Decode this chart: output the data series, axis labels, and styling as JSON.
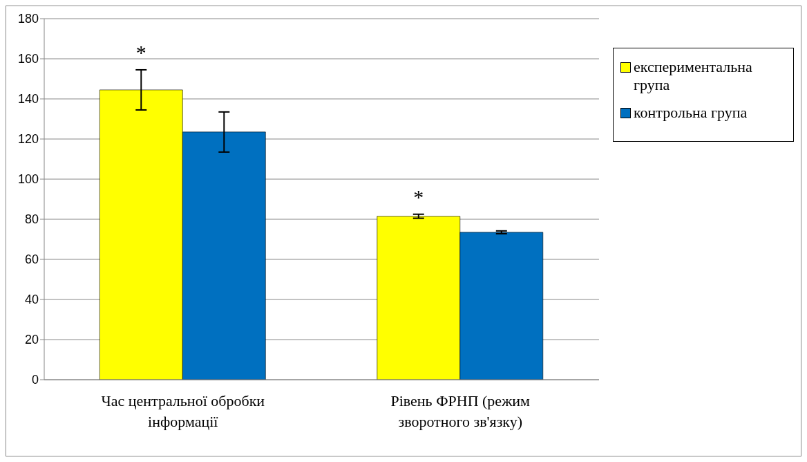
{
  "chart_data": {
    "type": "bar",
    "categories": [
      "Час центральної обробки інформації",
      "Рівень ФРНП (режим зворотного зв'язку)"
    ],
    "series": [
      {
        "name": "експериментальна група",
        "color": "#ffff00",
        "values": [
          144.5,
          81.5
        ],
        "errors": [
          10,
          1
        ]
      },
      {
        "name": "контрольна група",
        "color": "#0070c0",
        "values": [
          123.5,
          73.5
        ],
        "errors": [
          10,
          0.7
        ]
      }
    ],
    "ylim": [
      0,
      180
    ],
    "yticks": [
      0,
      20,
      40,
      60,
      80,
      100,
      120,
      140,
      160,
      180
    ],
    "grid": "y",
    "legend": "right",
    "annotations": [
      "*",
      "*"
    ]
  }
}
